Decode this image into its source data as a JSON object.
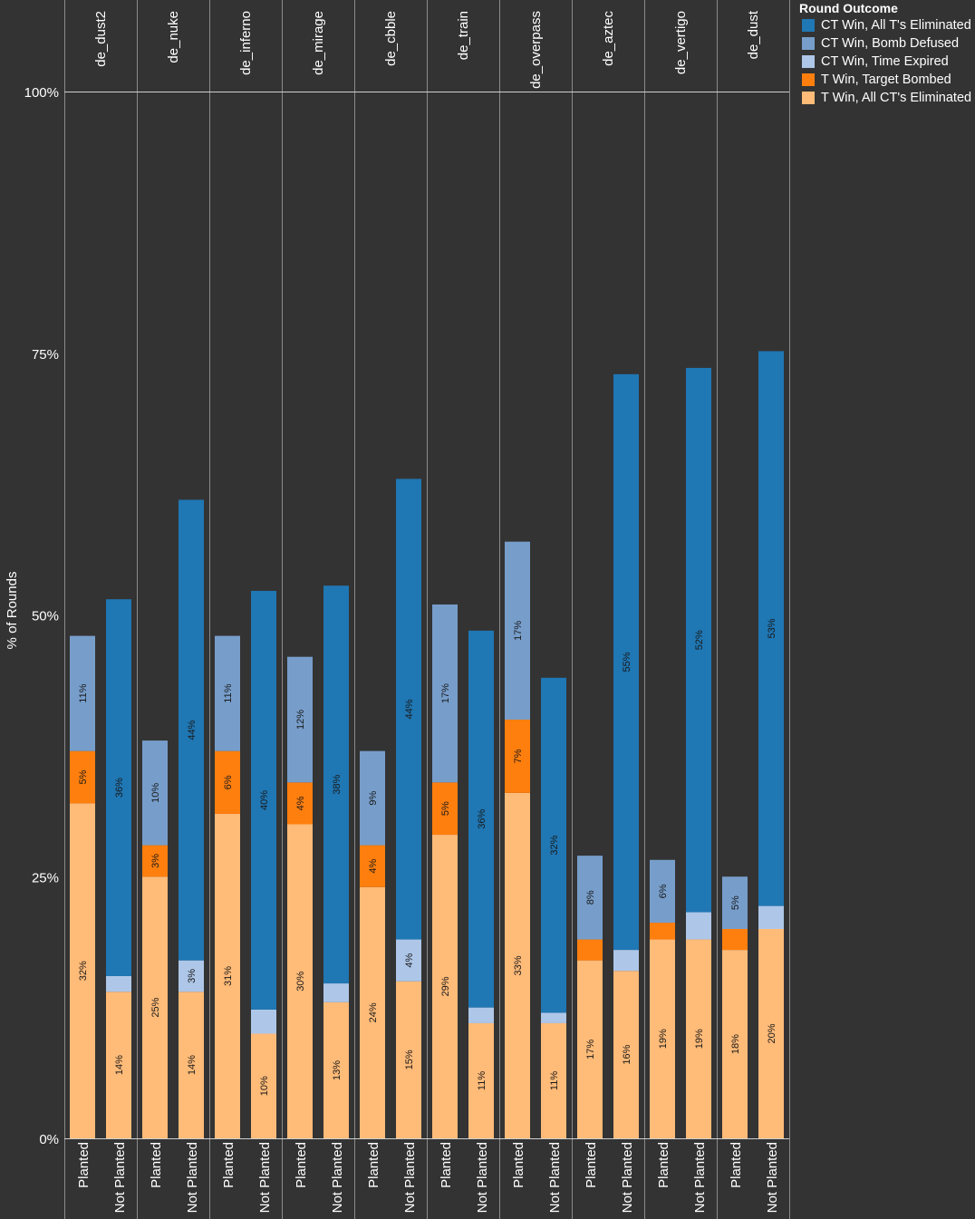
{
  "chart_data": {
    "type": "bar",
    "stacked": true,
    "ylabel": "% of Rounds",
    "ylim": [
      0,
      100
    ],
    "yticks": [
      0,
      25,
      50,
      75,
      100
    ],
    "ytick_labels": [
      "0%",
      "25%",
      "50%",
      "75%",
      "100%"
    ],
    "grid": "horizontal line at 100%",
    "maps": [
      "de_dust2",
      "de_nuke",
      "de_inferno",
      "de_mirage",
      "de_cbble",
      "de_train",
      "de_overpass",
      "de_aztec",
      "de_vertigo",
      "de_dust"
    ],
    "categories": [
      "Planted",
      "Not Planted"
    ],
    "legend": {
      "title": "Round Outcome",
      "position": "top-right"
    },
    "series": [
      {
        "name": "T Win, All CT's Eliminated",
        "color": "#ffbb78",
        "values": [
          [
            32,
            14
          ],
          [
            25,
            14
          ],
          [
            31,
            10
          ],
          [
            30,
            13
          ],
          [
            24,
            15
          ],
          [
            29,
            11
          ],
          [
            33,
            11
          ],
          [
            17,
            16
          ],
          [
            19,
            19
          ],
          [
            18,
            20
          ]
        ],
        "labels": [
          [
            "32%",
            "14%"
          ],
          [
            "25%",
            "14%"
          ],
          [
            "31%",
            "10%"
          ],
          [
            "30%",
            "13%"
          ],
          [
            "24%",
            "15%"
          ],
          [
            "29%",
            "11%"
          ],
          [
            "33%",
            "11%"
          ],
          [
            "17%",
            "16%"
          ],
          [
            "19%",
            "19%"
          ],
          [
            "18%",
            "20%"
          ]
        ]
      },
      {
        "name": "T Win, Target Bombed",
        "color": "#ff7f0e",
        "values": [
          [
            5,
            0
          ],
          [
            3,
            0
          ],
          [
            6,
            0
          ],
          [
            4,
            0
          ],
          [
            4,
            0
          ],
          [
            5,
            0
          ],
          [
            7,
            0
          ],
          [
            2,
            0
          ],
          [
            1.6,
            0
          ],
          [
            2,
            0
          ]
        ],
        "labels": [
          [
            "5%",
            ""
          ],
          [
            "3%",
            ""
          ],
          [
            "6%",
            ""
          ],
          [
            "4%",
            ""
          ],
          [
            "4%",
            ""
          ],
          [
            "5%",
            ""
          ],
          [
            "7%",
            ""
          ],
          [
            "",
            ""
          ],
          [
            "",
            ""
          ],
          [
            "",
            ""
          ]
        ]
      },
      {
        "name": "CT Win, Time Expired",
        "color": "#aec7e8",
        "values": [
          [
            0,
            1.5
          ],
          [
            0,
            3
          ],
          [
            0,
            2.3
          ],
          [
            0,
            1.8
          ],
          [
            0,
            4
          ],
          [
            0,
            1.5
          ],
          [
            0,
            1
          ],
          [
            0,
            2
          ],
          [
            0,
            2.6
          ],
          [
            0,
            2.2
          ]
        ],
        "labels": [
          [
            "",
            ""
          ],
          [
            "",
            "3%"
          ],
          [
            "",
            ""
          ],
          [
            "",
            ""
          ],
          [
            "",
            "4%"
          ],
          [
            "",
            ""
          ],
          [
            "",
            ""
          ],
          [
            "",
            ""
          ],
          [
            "",
            ""
          ],
          [
            "",
            ""
          ]
        ]
      },
      {
        "name": "CT Win, Bomb Defused",
        "color": "#779ecb",
        "values": [
          [
            11,
            0
          ],
          [
            10,
            0
          ],
          [
            11,
            0
          ],
          [
            12,
            0
          ],
          [
            9,
            0
          ],
          [
            17,
            0
          ],
          [
            17,
            0
          ],
          [
            8,
            0
          ],
          [
            6,
            0
          ],
          [
            5,
            0
          ]
        ],
        "labels": [
          [
            "11%",
            ""
          ],
          [
            "10%",
            ""
          ],
          [
            "11%",
            ""
          ],
          [
            "12%",
            ""
          ],
          [
            "9%",
            ""
          ],
          [
            "17%",
            ""
          ],
          [
            "17%",
            ""
          ],
          [
            "8%",
            ""
          ],
          [
            "6%",
            ""
          ],
          [
            "5%",
            ""
          ]
        ]
      },
      {
        "name": "CT Win, All T's Eliminated",
        "color": "#1f77b4",
        "values": [
          [
            0,
            36
          ],
          [
            0,
            44
          ],
          [
            0,
            40
          ],
          [
            0,
            38
          ],
          [
            0,
            44
          ],
          [
            0,
            36
          ],
          [
            0,
            32
          ],
          [
            0,
            55
          ],
          [
            0,
            52
          ],
          [
            0,
            53
          ]
        ],
        "labels": [
          [
            "",
            "36%"
          ],
          [
            "",
            "44%"
          ],
          [
            "",
            "40%"
          ],
          [
            "",
            "38%"
          ],
          [
            "",
            "44%"
          ],
          [
            "",
            "36%"
          ],
          [
            "",
            "32%"
          ],
          [
            "",
            "55%"
          ],
          [
            "",
            "52%"
          ],
          [
            "",
            "53%"
          ]
        ]
      }
    ],
    "legend_order": [
      "CT Win, All T's Eliminated",
      "CT Win, Bomb Defused",
      "CT Win, Time Expired",
      "T Win, Target Bombed",
      "T Win, All CT's Eliminated"
    ]
  }
}
